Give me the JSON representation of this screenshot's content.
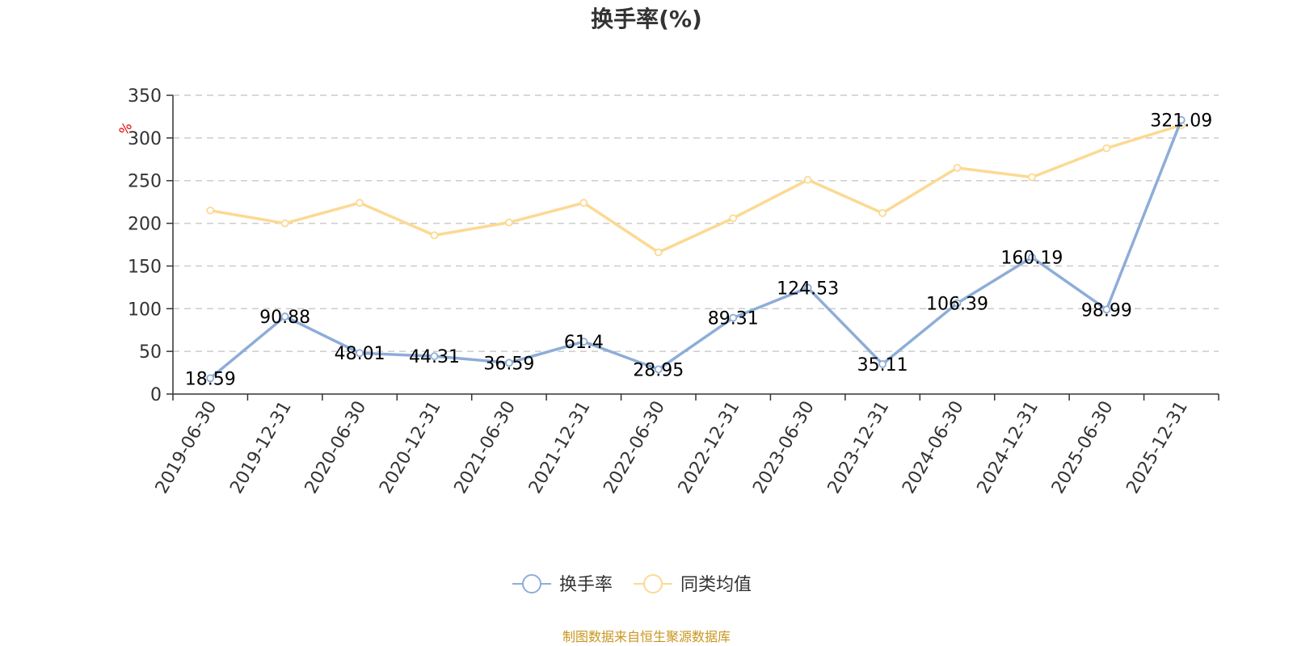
{
  "chart_data": {
    "type": "line",
    "title": "换手率(%)",
    "ylabel": "%",
    "xlabel": "",
    "ylim": [
      0,
      350
    ],
    "yticks": [
      0,
      50,
      100,
      150,
      200,
      250,
      300,
      350
    ],
    "categories": [
      "2019-06-30",
      "2019-12-31",
      "2020-06-30",
      "2020-12-31",
      "2021-06-30",
      "2021-12-31",
      "2022-06-30",
      "2022-12-31",
      "2023-06-30",
      "2023-12-31",
      "2024-06-30",
      "2024-12-31",
      "2025-06-30",
      "2025-12-31"
    ],
    "series": [
      {
        "name": "换手率",
        "color": "#8eadd8",
        "values": [
          18.59,
          90.88,
          48.01,
          44.31,
          36.59,
          61.4,
          28.95,
          89.31,
          124.53,
          35.11,
          106.39,
          160.19,
          98.99,
          321.09
        ],
        "labels": [
          "18.59",
          "90.88",
          "48.01",
          "44.31",
          "36.59",
          "61.4",
          "28.95",
          "89.31",
          "124.53",
          "35.11",
          "106.39",
          "160.19",
          "98.99",
          "321.09"
        ]
      },
      {
        "name": "同类均值",
        "color": "#fcd993",
        "values": [
          215,
          200,
          224,
          186,
          201,
          224,
          166,
          206,
          251,
          212,
          265,
          254,
          288,
          315
        ]
      }
    ],
    "grid": true,
    "legend": "bottom-center",
    "source": "制图数据来自恒生聚源数据库"
  }
}
